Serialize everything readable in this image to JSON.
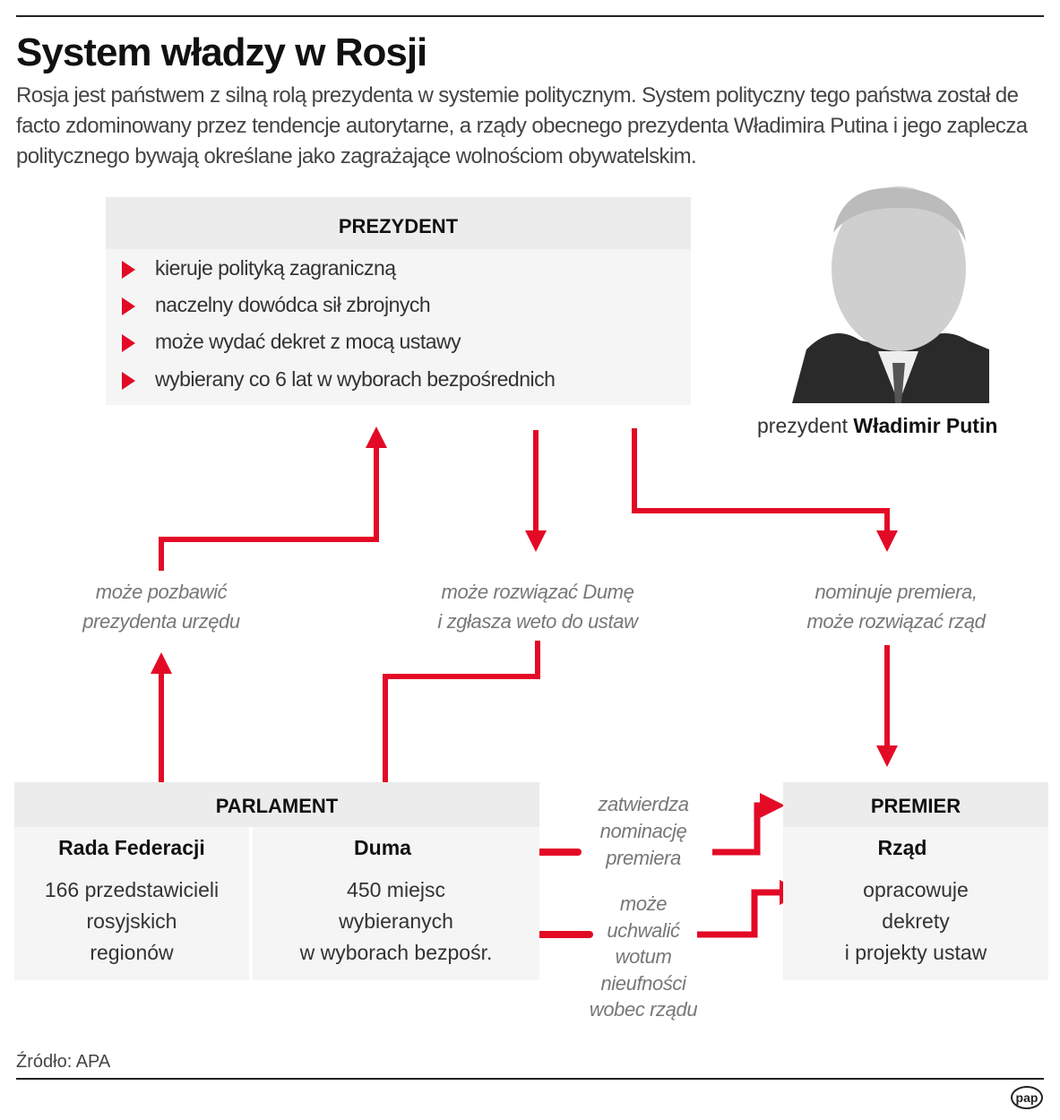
{
  "title": "System władzy w Rosji",
  "lead": "Rosja jest państwem z silną rolą prezydenta w systemie politycznym. System polityczny tego państwa został de facto zdominowany przez tendencje autorytarne, a rządy obecnego prezydenta Władimira Putina i jego zaplecza politycznego bywają określane jako zagrażające wolnościom obywatelskim.",
  "president": {
    "heading": "PREZYDENT",
    "items": [
      "kieruje polityką zagraniczną",
      "naczelny dowódca sił zbrojnych",
      "może wydać dekret z mocą ustawy",
      "wybierany co 6 lat w wyborach bezpośrednich"
    ]
  },
  "photo": {
    "caption_prefix": "prezydent",
    "caption_name": "Władimir Putin"
  },
  "relations": {
    "impeach": [
      "może pozbawić",
      "prezydenta urzędu"
    ],
    "dissolve": [
      "może rozwiązać Dumę",
      "i zgłasza weto do ustaw"
    ],
    "nominate": [
      "nominuje premiera,",
      "może rozwiązać rząd"
    ],
    "approve": [
      "zatwierdza",
      "nominację",
      "premiera"
    ],
    "noconfidence": [
      "może",
      "uchwalić",
      "wotum",
      "nieufności",
      "wobec rządu"
    ]
  },
  "parliament": {
    "heading": "PARLAMENT",
    "rada": {
      "name": "Rada Federacji",
      "lines": [
        "166 przedstawicieli",
        "rosyjskich",
        "regionów"
      ]
    },
    "duma": {
      "name": "Duma",
      "lines": [
        "450 miejsc",
        "wybieranych",
        "w wyborach bezpośr."
      ]
    }
  },
  "premier": {
    "heading": "PREMIER",
    "name": "Rząd",
    "lines": [
      "opracowuje",
      "dekrety",
      "i projekty ustaw"
    ]
  },
  "source": "Źródło: APA",
  "logo": "pap",
  "colors": {
    "accent": "#e30a26",
    "box": "#f5f5f5",
    "box_header": "#ececec"
  }
}
